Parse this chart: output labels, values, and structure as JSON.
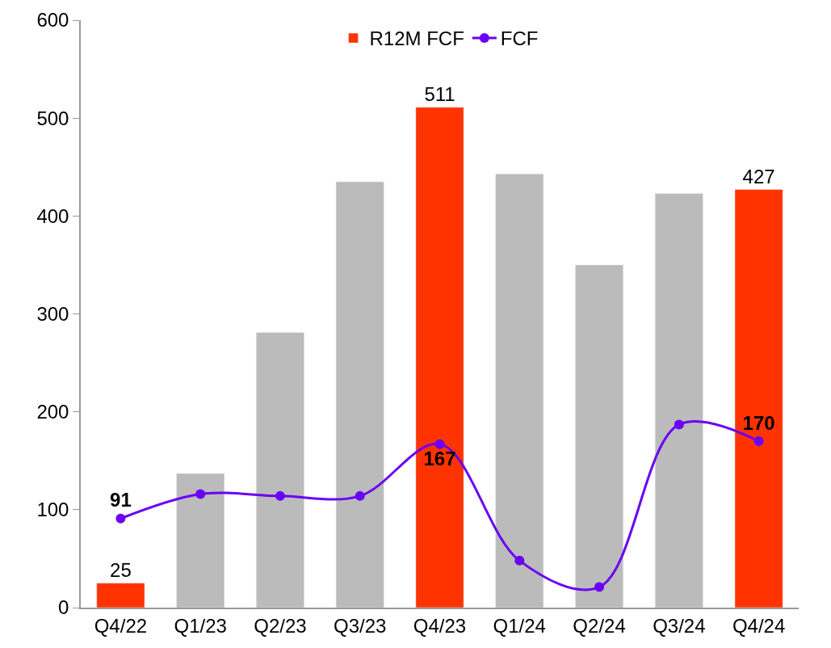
{
  "chart_data": {
    "type": "bar",
    "categories": [
      "Q4/22",
      "Q1/23",
      "Q2/23",
      "Q3/23",
      "Q4/23",
      "Q1/24",
      "Q2/24",
      "Q3/24",
      "Q4/24"
    ],
    "series": [
      {
        "name": "R12M FCF",
        "color": "#ff3300",
        "colors": [
          "#ff3300",
          "#bbbbbb",
          "#bbbbbb",
          "#bbbbbb",
          "#ff3300",
          "#bbbbbb",
          "#bbbbbb",
          "#bbbbbb",
          "#ff3300"
        ],
        "values": [
          25,
          137,
          281,
          435,
          511,
          443,
          350,
          423,
          427
        ],
        "value_labels": [
          "25",
          null,
          null,
          null,
          "511",
          null,
          null,
          null,
          "427"
        ]
      },
      {
        "name": "FCF",
        "type": "line",
        "color": "#6a00f4",
        "marker": "circle",
        "values": [
          91,
          116,
          114,
          114,
          167,
          48,
          21,
          187,
          170
        ],
        "value_labels": [
          "91",
          null,
          null,
          null,
          "167",
          null,
          null,
          null,
          "170"
        ]
      }
    ],
    "ylim": [
      0,
      600
    ],
    "yticks": [
      0,
      100,
      200,
      300,
      400,
      500,
      600
    ],
    "legend": "top"
  }
}
